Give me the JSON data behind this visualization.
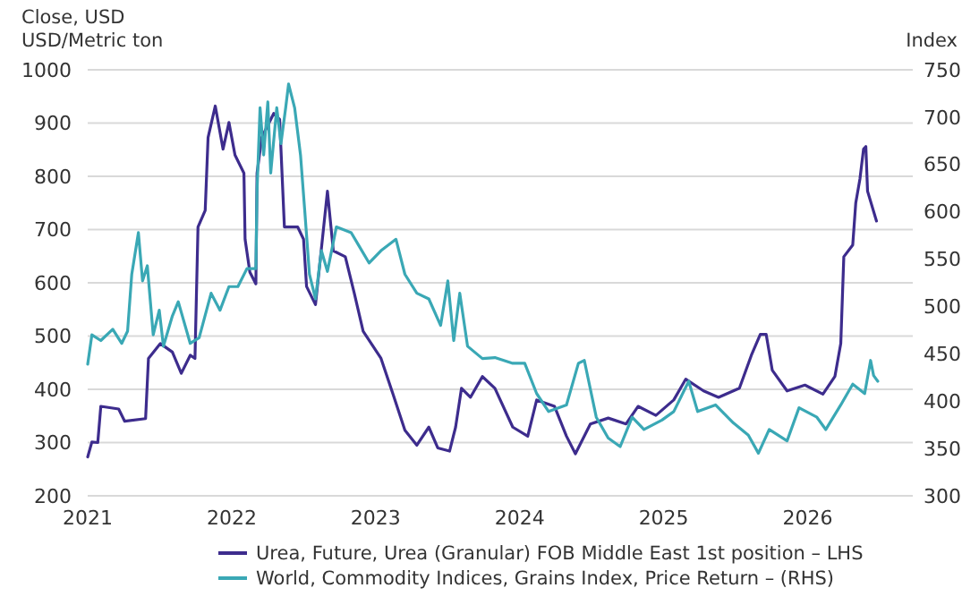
{
  "chart_data": {
    "type": "line",
    "title": "Close, USD",
    "ylabel": "USD/Metric ton",
    "y2label": "Index",
    "xlim": [
      2021,
      2026.73
    ],
    "xticks": [
      2021,
      2022,
      2023,
      2024,
      2025,
      2026
    ],
    "ylim": [
      200,
      1000
    ],
    "yticks": [
      200,
      300,
      400,
      500,
      600,
      700,
      800,
      900,
      1000
    ],
    "y2lim": [
      300,
      750
    ],
    "y2ticks": [
      300,
      350,
      400,
      450,
      500,
      550,
      600,
      650,
      700,
      750
    ],
    "grid": "y",
    "legend": "bottom",
    "marker": "none",
    "line_style": "solid",
    "series": [
      {
        "name": "Urea, Future, Urea (Granular) FOB Middle East 1st position – LHS",
        "color": "#3d2c8d",
        "axis": "y",
        "x": [
          2021.0,
          2021.029,
          2021.07,
          2021.091,
          2021.215,
          2021.257,
          2021.402,
          2021.422,
          2021.505,
          2021.588,
          2021.65,
          2021.712,
          2021.745,
          2021.766,
          2021.816,
          2021.836,
          2021.886,
          2021.94,
          2021.981,
          2022.023,
          2022.085,
          2022.093,
          2022.126,
          2022.168,
          2022.176,
          2022.209,
          2022.292,
          2022.333,
          2022.366,
          2022.458,
          2022.499,
          2022.52,
          2022.582,
          2022.665,
          2022.706,
          2022.789,
          2022.851,
          2022.913,
          2023.037,
          2023.12,
          2023.203,
          2023.286,
          2023.369,
          2023.431,
          2023.513,
          2023.555,
          2023.596,
          2023.658,
          2023.741,
          2023.828,
          2023.952,
          2024.056,
          2024.118,
          2024.242,
          2024.325,
          2024.387,
          2024.491,
          2024.615,
          2024.739,
          2024.822,
          2024.946,
          2025.07,
          2025.153,
          2025.277,
          2025.381,
          2025.526,
          2025.609,
          2025.671,
          2025.712,
          2025.754,
          2025.857,
          2025.981,
          2026.106,
          2026.189,
          2026.23,
          2026.251,
          2026.313,
          2026.334,
          2026.363,
          2026.388,
          2026.404,
          2026.416,
          2026.478
        ],
        "values": [
          273,
          301,
          300,
          368,
          363,
          340,
          345,
          458,
          486,
          470,
          430,
          464,
          458,
          705,
          736,
          873,
          932,
          851,
          901,
          840,
          806,
          682,
          620,
          598,
          806,
          873,
          918,
          907,
          705,
          705,
          682,
          593,
          559,
          772,
          660,
          649,
          581,
          509,
          458,
          391,
          323,
          295,
          329,
          290,
          284,
          329,
          402,
          385,
          424,
          402,
          329,
          312,
          380,
          368,
          312,
          279,
          335,
          346,
          335,
          368,
          351,
          380,
          419,
          397,
          385,
          402,
          464,
          503,
          503,
          436,
          397,
          408,
          391,
          424,
          486,
          649,
          671,
          750,
          795,
          851,
          856,
          772,
          716
        ]
      },
      {
        "name": "World, Commodity Indices, Grains Index, Price Return – (RHS)",
        "color": "#3aa8b5",
        "axis": "y2",
        "x": [
          2021.0,
          2021.029,
          2021.091,
          2021.174,
          2021.236,
          2021.277,
          2021.306,
          2021.352,
          2021.381,
          2021.414,
          2021.455,
          2021.497,
          2021.526,
          2021.588,
          2021.629,
          2021.712,
          2021.774,
          2021.857,
          2021.919,
          2021.981,
          2022.043,
          2022.106,
          2022.168,
          2022.176,
          2022.197,
          2022.222,
          2022.251,
          2022.271,
          2022.313,
          2022.342,
          2022.375,
          2022.395,
          2022.437,
          2022.478,
          2022.507,
          2022.54,
          2022.582,
          2022.623,
          2022.665,
          2022.727,
          2022.83,
          2022.892,
          2022.954,
          2023.037,
          2023.141,
          2023.203,
          2023.286,
          2023.369,
          2023.451,
          2023.501,
          2023.542,
          2023.584,
          2023.638,
          2023.741,
          2023.828,
          2023.952,
          2024.035,
          2024.118,
          2024.201,
          2024.325,
          2024.408,
          2024.449,
          2024.532,
          2024.615,
          2024.698,
          2024.781,
          2024.863,
          2024.988,
          2025.07,
          2025.174,
          2025.236,
          2025.36,
          2025.484,
          2025.588,
          2025.658,
          2025.733,
          2025.857,
          2025.94,
          2026.064,
          2026.126,
          2026.23,
          2026.313,
          2026.396,
          2026.437,
          2026.458,
          2026.487
        ],
        "values": [
          439,
          470,
          464,
          476,
          461,
          474,
          534,
          578,
          527,
          543,
          470,
          496,
          458,
          490,
          505,
          461,
          467,
          514,
          496,
          521,
          521,
          540,
          540,
          622,
          710,
          660,
          716,
          641,
          710,
          672,
          710,
          735,
          710,
          660,
          602,
          534,
          508,
          559,
          537,
          584,
          578,
          562,
          546,
          559,
          571,
          534,
          514,
          508,
          480,
          527,
          464,
          514,
          458,
          445,
          446,
          440,
          440,
          408,
          389,
          396,
          440,
          443,
          383,
          361,
          352,
          383,
          370,
          380,
          389,
          421,
          389,
          396,
          377,
          364,
          345,
          370,
          358,
          393,
          383,
          370,
          396,
          418,
          408,
          443,
          427,
          421
        ]
      }
    ]
  }
}
